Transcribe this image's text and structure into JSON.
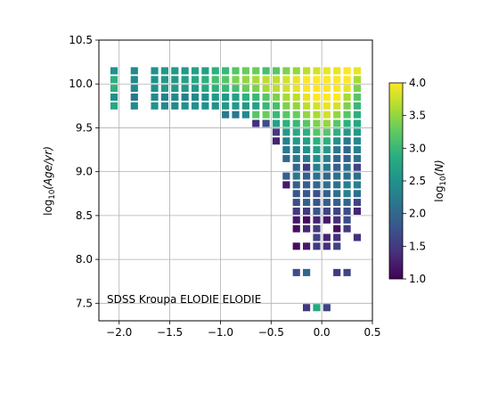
{
  "chart_data": {
    "type": "heatmap",
    "annotation": "SDSS Kroupa ELODIE ELODIE",
    "ylabel_base": "log",
    "ylabel_sub": "10",
    "ylabel_rest": "(Age/yr)",
    "cbar_label_base": "log",
    "cbar_label_sub": "10",
    "cbar_label_rest": "(N)",
    "xlim": [
      -2.2,
      0.5
    ],
    "ylim": [
      7.3,
      10.5
    ],
    "xticks": [
      -2.0,
      -1.5,
      -1.0,
      -0.5,
      0.0,
      0.5
    ],
    "xtick_labels": [
      "−2.0",
      "−1.5",
      "−1.0",
      "−0.5",
      "0.0",
      "0.5"
    ],
    "yticks": [
      7.5,
      8.0,
      8.5,
      9.0,
      9.5,
      10.0,
      10.5
    ],
    "ytick_labels": [
      "7.5",
      "8.0",
      "8.5",
      "9.0",
      "9.5",
      "10.0",
      "10.5"
    ],
    "cbar_range": [
      1.0,
      4.0
    ],
    "cbar_ticks": [
      1.0,
      1.5,
      2.0,
      2.5,
      3.0,
      3.5,
      4.0
    ],
    "cbar_tick_labels": [
      "1.0",
      "1.5",
      "2.0",
      "2.5",
      "3.0",
      "3.5",
      "4.0"
    ],
    "colormap": "viridis",
    "grid": true,
    "cell_size_x": 0.1,
    "cell_size_y": 0.1,
    "cells": [
      [
        -2.05,
        10.15,
        2.5
      ],
      [
        -2.05,
        10.05,
        2.9
      ],
      [
        -2.05,
        9.95,
        2.9
      ],
      [
        -2.05,
        9.85,
        2.5
      ],
      [
        -2.05,
        9.75,
        2.8
      ],
      [
        -1.85,
        10.15,
        2.4
      ],
      [
        -1.85,
        10.05,
        2.4
      ],
      [
        -1.85,
        9.95,
        2.4
      ],
      [
        -1.85,
        9.85,
        2.2
      ],
      [
        -1.85,
        9.75,
        2.4
      ],
      [
        -1.65,
        10.15,
        2.5
      ],
      [
        -1.65,
        10.05,
        2.5
      ],
      [
        -1.65,
        9.95,
        2.5
      ],
      [
        -1.65,
        9.85,
        2.4
      ],
      [
        -1.65,
        9.75,
        2.5
      ],
      [
        -1.55,
        10.15,
        2.6
      ],
      [
        -1.55,
        10.05,
        2.6
      ],
      [
        -1.55,
        9.95,
        2.6
      ],
      [
        -1.55,
        9.85,
        2.3
      ],
      [
        -1.55,
        9.75,
        2.4
      ],
      [
        -1.45,
        10.15,
        2.6
      ],
      [
        -1.45,
        10.05,
        2.6
      ],
      [
        -1.45,
        9.95,
        2.6
      ],
      [
        -1.45,
        9.85,
        2.4
      ],
      [
        -1.45,
        9.75,
        2.4
      ],
      [
        -1.35,
        10.15,
        2.6
      ],
      [
        -1.35,
        10.05,
        2.7
      ],
      [
        -1.35,
        9.95,
        2.6
      ],
      [
        -1.35,
        9.85,
        2.3
      ],
      [
        -1.35,
        9.75,
        2.5
      ],
      [
        -1.25,
        10.15,
        2.7
      ],
      [
        -1.25,
        10.05,
        2.8
      ],
      [
        -1.25,
        9.95,
        2.6
      ],
      [
        -1.25,
        9.85,
        2.4
      ],
      [
        -1.25,
        9.75,
        2.5
      ],
      [
        -1.15,
        10.15,
        2.7
      ],
      [
        -1.15,
        10.05,
        2.9
      ],
      [
        -1.15,
        9.95,
        2.8
      ],
      [
        -1.15,
        9.85,
        2.5
      ],
      [
        -1.15,
        9.75,
        2.5
      ],
      [
        -1.05,
        10.15,
        2.9
      ],
      [
        -1.05,
        10.05,
        3.1
      ],
      [
        -1.05,
        9.95,
        2.9
      ],
      [
        -1.05,
        9.85,
        2.6
      ],
      [
        -1.05,
        9.75,
        2.5
      ],
      [
        -0.95,
        10.15,
        3.0
      ],
      [
        -0.95,
        10.05,
        3.2
      ],
      [
        -0.95,
        9.95,
        3.0
      ],
      [
        -0.95,
        9.85,
        2.6
      ],
      [
        -0.95,
        9.75,
        2.6
      ],
      [
        -0.95,
        9.65,
        2.2
      ],
      [
        -0.85,
        10.15,
        3.2
      ],
      [
        -0.85,
        10.05,
        3.4
      ],
      [
        -0.85,
        9.95,
        3.1
      ],
      [
        -0.85,
        9.85,
        2.7
      ],
      [
        -0.85,
        9.75,
        2.6
      ],
      [
        -0.85,
        9.65,
        2.2
      ],
      [
        -0.75,
        10.15,
        3.3
      ],
      [
        -0.75,
        10.05,
        3.5
      ],
      [
        -0.75,
        9.95,
        3.3
      ],
      [
        -0.75,
        9.85,
        2.9
      ],
      [
        -0.75,
        9.75,
        2.6
      ],
      [
        -0.75,
        9.65,
        2.4
      ],
      [
        -0.65,
        10.15,
        3.3
      ],
      [
        -0.65,
        10.05,
        3.6
      ],
      [
        -0.65,
        9.95,
        3.4
      ],
      [
        -0.65,
        9.85,
        3.0
      ],
      [
        -0.65,
        9.75,
        2.7
      ],
      [
        -0.65,
        9.65,
        3.2
      ],
      [
        -0.65,
        9.55,
        1.4
      ],
      [
        -0.55,
        10.15,
        3.1
      ],
      [
        -0.55,
        10.05,
        3.7
      ],
      [
        -0.55,
        9.95,
        3.6
      ],
      [
        -0.55,
        9.85,
        3.2
      ],
      [
        -0.55,
        9.75,
        3.0
      ],
      [
        -0.55,
        9.65,
        3.3
      ],
      [
        -0.55,
        9.55,
        1.7
      ],
      [
        -0.45,
        10.15,
        3.2
      ],
      [
        -0.45,
        10.05,
        3.7
      ],
      [
        -0.45,
        9.95,
        3.7
      ],
      [
        -0.45,
        9.85,
        3.4
      ],
      [
        -0.45,
        9.75,
        3.1
      ],
      [
        -0.45,
        9.65,
        3.0
      ],
      [
        -0.45,
        9.55,
        2.7
      ],
      [
        -0.45,
        9.45,
        1.5
      ],
      [
        -0.45,
        9.35,
        1.3
      ],
      [
        -0.35,
        10.15,
        3.4
      ],
      [
        -0.35,
        10.05,
        3.8
      ],
      [
        -0.35,
        9.95,
        3.8
      ],
      [
        -0.35,
        9.85,
        3.6
      ],
      [
        -0.35,
        9.75,
        3.4
      ],
      [
        -0.35,
        9.65,
        3.2
      ],
      [
        -0.35,
        9.55,
        2.9
      ],
      [
        -0.35,
        9.45,
        2.6
      ],
      [
        -0.35,
        9.35,
        2.3
      ],
      [
        -0.35,
        9.25,
        2.2
      ],
      [
        -0.35,
        9.15,
        2.0
      ],
      [
        -0.35,
        8.95,
        1.9
      ],
      [
        -0.35,
        8.85,
        1.2
      ],
      [
        -0.25,
        10.15,
        3.5
      ],
      [
        -0.25,
        10.05,
        3.9
      ],
      [
        -0.25,
        9.95,
        3.9
      ],
      [
        -0.25,
        9.85,
        3.7
      ],
      [
        -0.25,
        9.75,
        3.5
      ],
      [
        -0.25,
        9.65,
        3.3
      ],
      [
        -0.25,
        9.55,
        3.0
      ],
      [
        -0.25,
        9.45,
        2.8
      ],
      [
        -0.25,
        9.35,
        2.6
      ],
      [
        -0.25,
        9.25,
        2.3
      ],
      [
        -0.25,
        9.15,
        2.2
      ],
      [
        -0.25,
        9.05,
        2.0
      ],
      [
        -0.25,
        8.95,
        2.2
      ],
      [
        -0.25,
        8.85,
        1.9
      ],
      [
        -0.25,
        8.75,
        1.8
      ],
      [
        -0.25,
        8.65,
        1.7
      ],
      [
        -0.25,
        8.55,
        1.5
      ],
      [
        -0.25,
        8.45,
        1.2
      ],
      [
        -0.25,
        8.35,
        1.1
      ],
      [
        -0.25,
        8.15,
        1.1
      ],
      [
        -0.25,
        7.85,
        1.7
      ],
      [
        -0.15,
        10.15,
        3.7
      ],
      [
        -0.15,
        10.05,
        4.0
      ],
      [
        -0.15,
        9.95,
        4.0
      ],
      [
        -0.15,
        9.85,
        3.9
      ],
      [
        -0.15,
        9.75,
        3.7
      ],
      [
        -0.15,
        9.65,
        3.5
      ],
      [
        -0.15,
        9.55,
        3.2
      ],
      [
        -0.15,
        9.45,
        2.9
      ],
      [
        -0.15,
        9.35,
        2.7
      ],
      [
        -0.15,
        9.25,
        2.5
      ],
      [
        -0.15,
        9.15,
        2.2
      ],
      [
        -0.15,
        9.05,
        1.5
      ],
      [
        -0.15,
        8.95,
        1.9
      ],
      [
        -0.15,
        8.85,
        1.9
      ],
      [
        -0.15,
        8.75,
        1.8
      ],
      [
        -0.15,
        8.65,
        1.9
      ],
      [
        -0.15,
        8.55,
        1.5
      ],
      [
        -0.15,
        8.45,
        1.1
      ],
      [
        -0.15,
        8.35,
        1.3
      ],
      [
        -0.15,
        8.15,
        1.2
      ],
      [
        -0.15,
        7.85,
        2.0
      ],
      [
        -0.15,
        7.45,
        1.5
      ],
      [
        -0.05,
        10.15,
        3.8
      ],
      [
        -0.05,
        10.05,
        4.0
      ],
      [
        -0.05,
        9.95,
        4.0
      ],
      [
        -0.05,
        9.85,
        4.0
      ],
      [
        -0.05,
        9.75,
        3.8
      ],
      [
        -0.05,
        9.65,
        3.6
      ],
      [
        -0.05,
        9.55,
        3.4
      ],
      [
        -0.05,
        9.45,
        3.2
      ],
      [
        -0.05,
        9.35,
        2.9
      ],
      [
        -0.05,
        9.25,
        2.7
      ],
      [
        -0.05,
        9.15,
        2.5
      ],
      [
        -0.05,
        9.05,
        2.3
      ],
      [
        -0.05,
        8.95,
        2.1
      ],
      [
        -0.05,
        8.85,
        2.0
      ],
      [
        -0.05,
        8.75,
        1.7
      ],
      [
        -0.05,
        8.65,
        1.8
      ],
      [
        -0.05,
        8.55,
        1.8
      ],
      [
        -0.05,
        8.45,
        1.3
      ],
      [
        -0.05,
        8.35,
        1.5
      ],
      [
        -0.05,
        8.25,
        1.6
      ],
      [
        -0.05,
        8.15,
        1.5
      ],
      [
        -0.05,
        7.45,
        2.8
      ],
      [
        0.05,
        10.15,
        3.9
      ],
      [
        0.05,
        10.05,
        4.0
      ],
      [
        0.05,
        9.95,
        4.0
      ],
      [
        0.05,
        9.85,
        4.0
      ],
      [
        0.05,
        9.75,
        3.9
      ],
      [
        0.05,
        9.65,
        3.8
      ],
      [
        0.05,
        9.55,
        3.5
      ],
      [
        0.05,
        9.45,
        3.2
      ],
      [
        0.05,
        9.35,
        2.9
      ],
      [
        0.05,
        9.25,
        2.6
      ],
      [
        0.05,
        9.15,
        2.3
      ],
      [
        0.05,
        9.05,
        2.2
      ],
      [
        0.05,
        8.95,
        2.0
      ],
      [
        0.05,
        8.85,
        2.1
      ],
      [
        0.05,
        8.75,
        1.9
      ],
      [
        0.05,
        8.65,
        1.9
      ],
      [
        0.05,
        8.55,
        1.6
      ],
      [
        0.05,
        8.45,
        1.2
      ],
      [
        0.05,
        8.25,
        1.3
      ],
      [
        0.05,
        8.15,
        1.4
      ],
      [
        0.05,
        7.45,
        1.6
      ],
      [
        0.15,
        10.15,
        3.9
      ],
      [
        0.15,
        10.05,
        4.0
      ],
      [
        0.15,
        9.95,
        4.0
      ],
      [
        0.15,
        9.85,
        4.0
      ],
      [
        0.15,
        9.75,
        3.8
      ],
      [
        0.15,
        9.65,
        3.5
      ],
      [
        0.15,
        9.55,
        3.2
      ],
      [
        0.15,
        9.45,
        2.9
      ],
      [
        0.15,
        9.35,
        2.5
      ],
      [
        0.15,
        9.25,
        2.2
      ],
      [
        0.15,
        9.15,
        2.0
      ],
      [
        0.15,
        9.05,
        1.9
      ],
      [
        0.15,
        8.95,
        2.1
      ],
      [
        0.15,
        8.85,
        2.1
      ],
      [
        0.15,
        8.75,
        2.1
      ],
      [
        0.15,
        8.65,
        1.9
      ],
      [
        0.15,
        8.55,
        1.6
      ],
      [
        0.15,
        8.45,
        1.4
      ],
      [
        0.15,
        8.35,
        1.1
      ],
      [
        0.15,
        8.25,
        1.4
      ],
      [
        0.15,
        8.15,
        1.6
      ],
      [
        0.15,
        7.85,
        1.5
      ],
      [
        0.25,
        10.15,
        4.0
      ],
      [
        0.25,
        10.05,
        4.0
      ],
      [
        0.25,
        9.95,
        3.9
      ],
      [
        0.25,
        9.85,
        3.6
      ],
      [
        0.25,
        9.75,
        3.4
      ],
      [
        0.25,
        9.65,
        3.2
      ],
      [
        0.25,
        9.55,
        2.9
      ],
      [
        0.25,
        9.45,
        2.6
      ],
      [
        0.25,
        9.35,
        2.2
      ],
      [
        0.25,
        9.25,
        2.0
      ],
      [
        0.25,
        9.15,
        1.9
      ],
      [
        0.25,
        9.05,
        2.1
      ],
      [
        0.25,
        8.95,
        2.1
      ],
      [
        0.25,
        8.85,
        2.3
      ],
      [
        0.25,
        8.75,
        2.3
      ],
      [
        0.25,
        8.65,
        2.0
      ],
      [
        0.25,
        8.55,
        1.7
      ],
      [
        0.25,
        8.45,
        1.7
      ],
      [
        0.25,
        8.35,
        1.5
      ],
      [
        0.25,
        7.85,
        1.6
      ],
      [
        0.35,
        10.15,
        3.9
      ],
      [
        0.35,
        10.05,
        3.6
      ],
      [
        0.35,
        9.95,
        3.4
      ],
      [
        0.35,
        9.85,
        3.2
      ],
      [
        0.35,
        9.75,
        3.0
      ],
      [
        0.35,
        9.65,
        2.9
      ],
      [
        0.35,
        9.55,
        2.8
      ],
      [
        0.35,
        9.45,
        2.6
      ],
      [
        0.35,
        9.35,
        2.4
      ],
      [
        0.35,
        9.25,
        2.3
      ],
      [
        0.35,
        9.15,
        2.1
      ],
      [
        0.35,
        9.05,
        1.6
      ],
      [
        0.35,
        8.95,
        2.1
      ],
      [
        0.35,
        8.85,
        2.3
      ],
      [
        0.35,
        8.75,
        2.1
      ],
      [
        0.35,
        8.65,
        1.6
      ],
      [
        0.35,
        8.55,
        1.3
      ],
      [
        0.35,
        8.25,
        1.4
      ]
    ]
  }
}
